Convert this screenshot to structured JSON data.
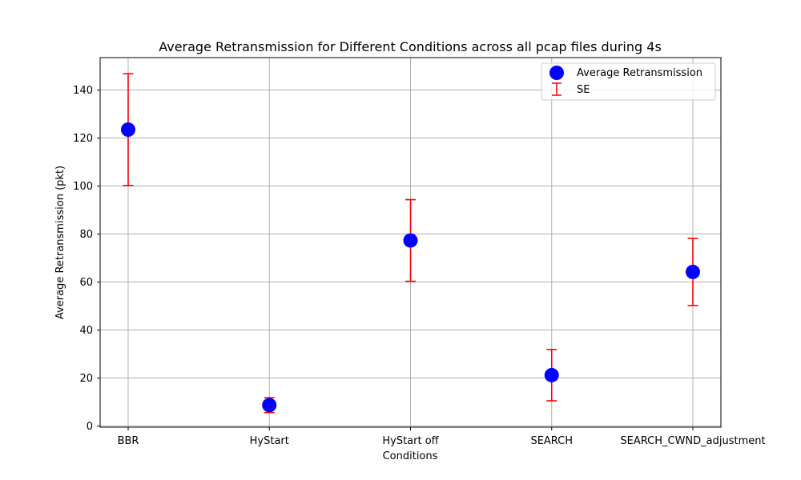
{
  "chart_data": {
    "type": "scatter",
    "title": "Average Retransmission for Different Conditions across all pcap files during 4s",
    "xlabel": "Conditions",
    "ylabel": "Average Retransmission (pkt)",
    "categories": [
      "BBR",
      "HyStart",
      "HyStart off",
      "SEARCH",
      "SEARCH_CWND_adjustment"
    ],
    "series": [
      {
        "name": "Average Retransmission",
        "values": [
          123.5,
          8.7,
          77.3,
          21.2,
          64.2
        ],
        "color": "#0000ff",
        "marker": "circle"
      }
    ],
    "error_bars": {
      "name": "SE",
      "values": [
        23.3,
        3.1,
        17.0,
        10.7,
        14.0
      ],
      "color": "#ff0000"
    },
    "ylim": [
      -0.5,
      153.5
    ],
    "yticks": [
      0,
      20,
      40,
      60,
      80,
      100,
      120,
      140
    ],
    "grid": true,
    "legend_position": "top-right"
  }
}
